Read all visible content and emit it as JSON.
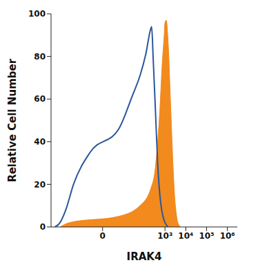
{
  "chart_data": {
    "type": "line",
    "x_label": "IRAK4",
    "y_label": "Relative Cell Number",
    "log": "x",
    "xlim": [
      -300,
      3000000
    ],
    "xticks": [
      0,
      {
        "value": 1000,
        "label": "10³"
      },
      {
        "value": 10000,
        "label": "10⁴"
      },
      {
        "value": 100000,
        "label": "10⁵"
      },
      {
        "value": 1000000,
        "label": "10⁶"
      }
    ],
    "ylim": [
      0,
      100
    ],
    "yticks": [
      0,
      20,
      40,
      60,
      80,
      100
    ],
    "series": [
      {
        "type": "area",
        "color": "#f28a1e",
        "x": [
          -111,
          -39,
          5,
          62,
          206,
          345,
          443,
          566,
          720,
          915,
          1000,
          1148,
          1445,
          1820,
          2290,
          2880,
          3630,
          4570,
          5750
        ],
        "values": [
          0,
          2,
          5,
          10,
          18,
          28,
          40,
          55,
          75,
          90,
          96,
          97,
          85,
          60,
          35,
          15,
          5,
          1,
          0
        ]
      },
      {
        "type": "line",
        "color": "#2b579a",
        "x": [
          -195,
          -111,
          -58,
          -24,
          -3,
          5,
          27,
          62,
          118,
          206,
          228,
          267,
          345,
          443,
          566,
          720,
          915,
          1148,
          1445
        ],
        "values": [
          0,
          2,
          8,
          20,
          35,
          46,
          62,
          71,
          81,
          93,
          94,
          80,
          55,
          30,
          15,
          7,
          3,
          1,
          0
        ]
      }
    ]
  }
}
